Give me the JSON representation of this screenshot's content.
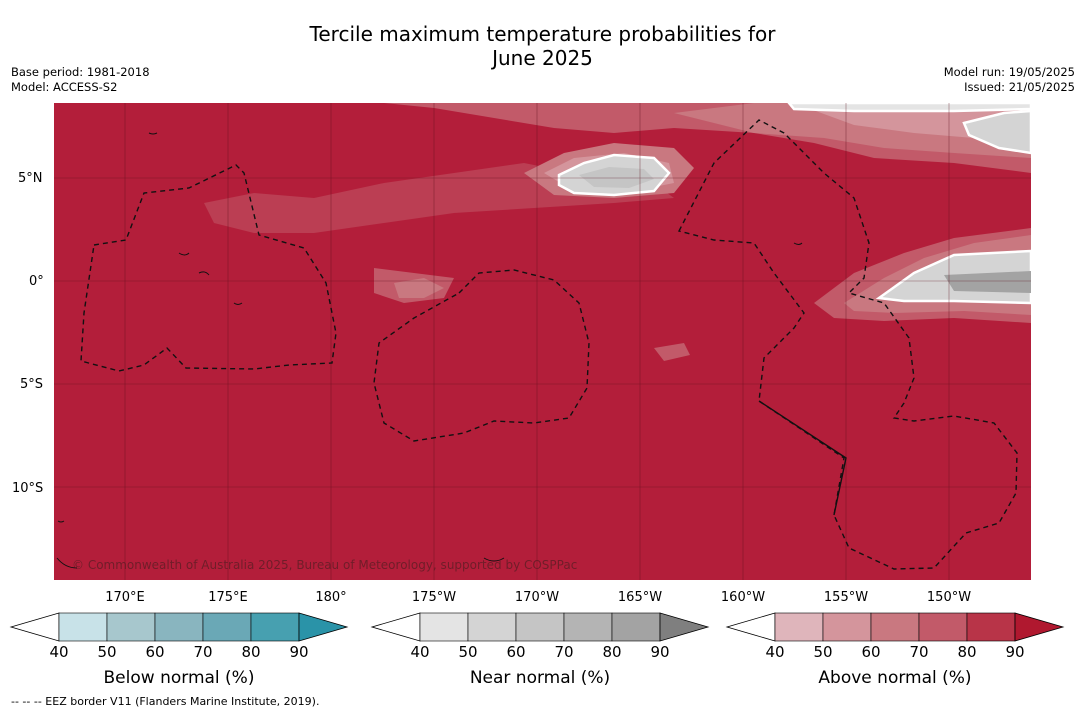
{
  "title": {
    "line1": "Tercile maximum temperature probabilities for",
    "line2": "June 2025"
  },
  "meta_left": {
    "base_period": "Base period: 1981-2018",
    "model": "Model: ACCESS-S2"
  },
  "meta_right": {
    "model_run": "Model run: 19/05/2025",
    "issued": "Issued: 21/05/2025"
  },
  "map": {
    "background_color": "#b31e3a",
    "copyright": "© Commonwealth of Australia 2025, Bureau of Meteorology, supported by COSPPac",
    "lat_labels": [
      "5°N",
      "0°",
      "5°S",
      "10°S"
    ],
    "lon_labels": [
      "170°E",
      "175°E",
      "180°",
      "175°W",
      "170°W",
      "165°W",
      "160°W",
      "155°W",
      "150°W"
    ]
  },
  "colorbars": [
    {
      "title": "Below normal (%)",
      "ticks": [
        "40",
        "50",
        "60",
        "70",
        "80",
        "90"
      ],
      "colors": [
        "#c8e2e8",
        "#a7c7cd",
        "#89b5bf",
        "#6aa8b6",
        "#47a0b0",
        "#2a93a8"
      ]
    },
    {
      "title": "Near normal (%)",
      "ticks": [
        "40",
        "50",
        "60",
        "70",
        "80",
        "90"
      ],
      "colors": [
        "#e4e4e4",
        "#d4d4d4",
        "#c5c5c5",
        "#b4b4b4",
        "#a3a3a3",
        "#7f7f7f"
      ]
    },
    {
      "title": "Above normal (%)",
      "ticks": [
        "40",
        "50",
        "60",
        "70",
        "80",
        "90"
      ],
      "colors": [
        "#dfb5bb",
        "#d4959c",
        "#c97880",
        "#c25a69",
        "#b83448",
        "#b0182f"
      ]
    }
  ],
  "footnote": "--  --  -- EEZ border V11 (Flanders Marine Institute, 2019)."
}
